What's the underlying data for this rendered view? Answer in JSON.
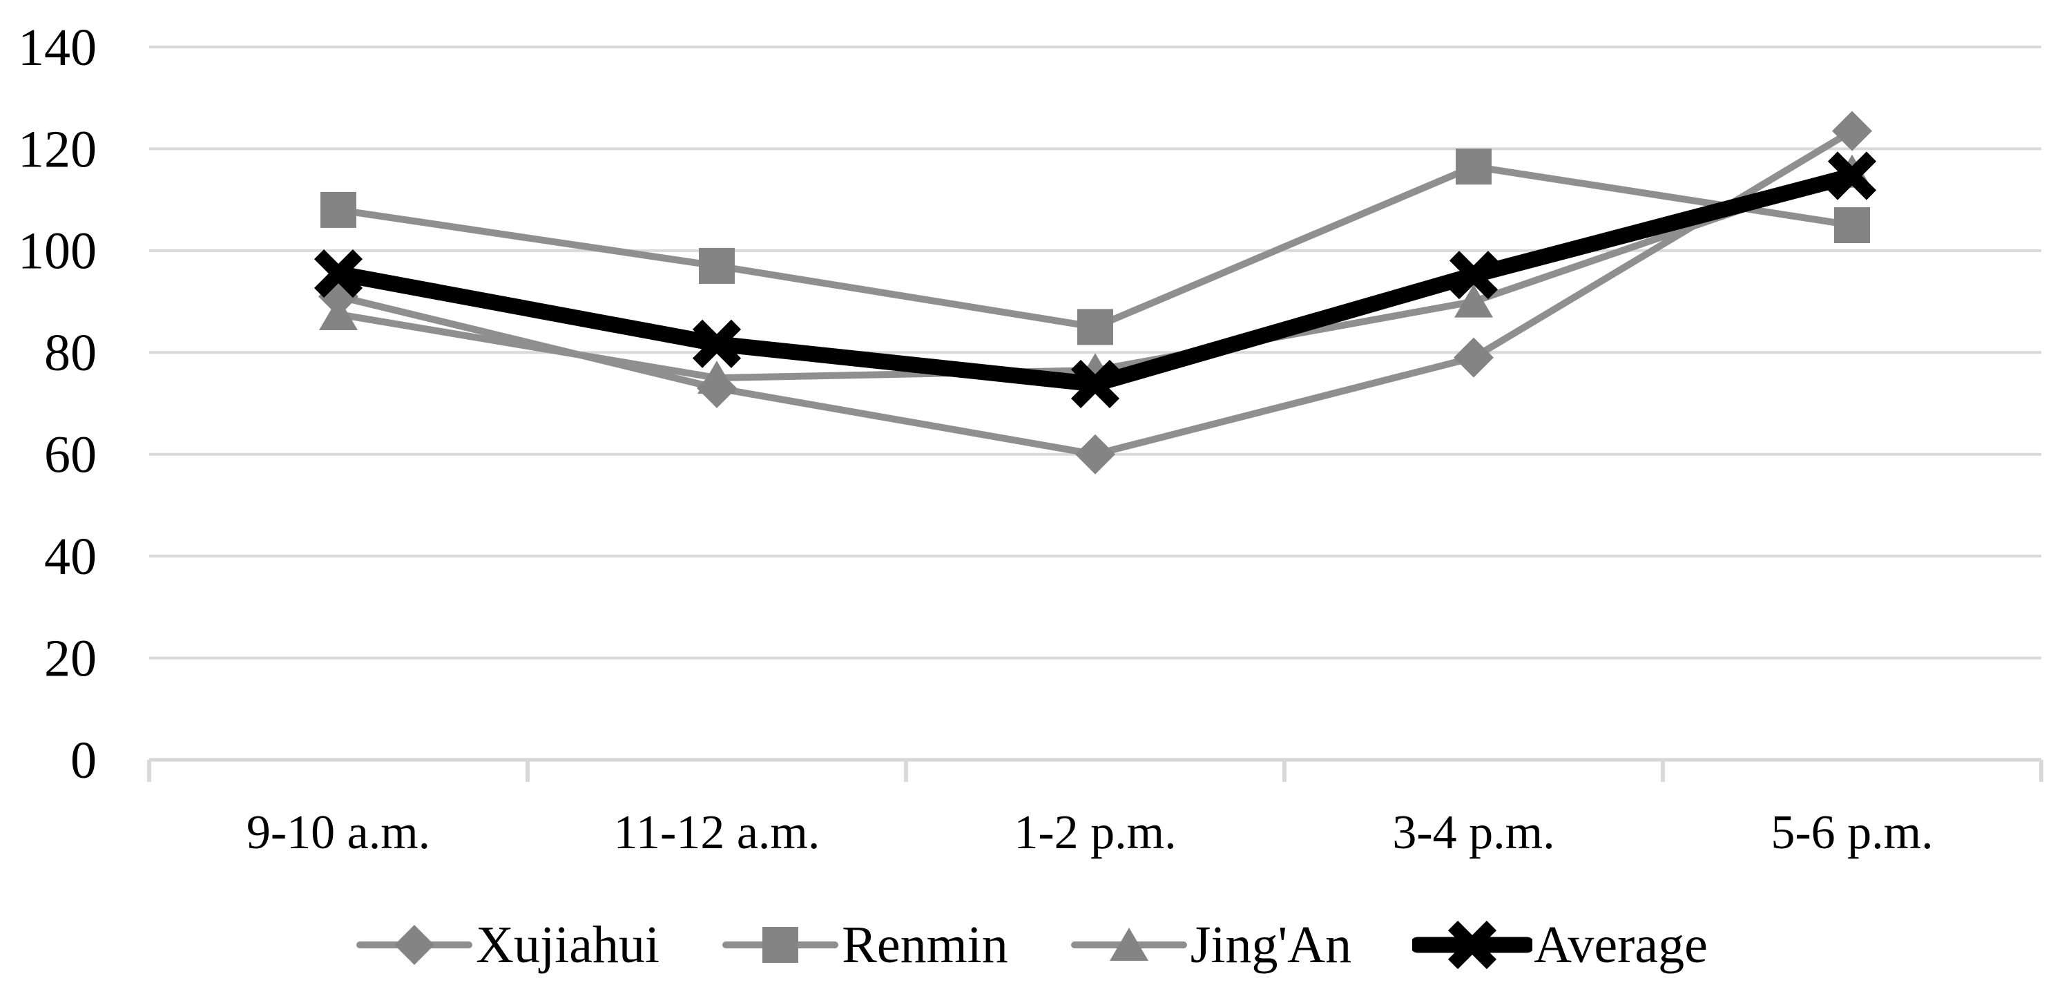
{
  "chart_data": {
    "type": "line",
    "title": "",
    "xlabel": "",
    "ylabel": "",
    "categories": [
      "9-10 a.m.",
      "11-12 a.m.",
      "1-2 p.m.",
      "3-4 p.m.",
      "5-6 p.m."
    ],
    "series": [
      {
        "name": "Xujiahui",
        "marker": "diamond",
        "line_color": "#8f8f8f",
        "marker_color": "#848484",
        "line_width": 10,
        "values": [
          91,
          73,
          60,
          79,
          123.5
        ]
      },
      {
        "name": "Renmin",
        "marker": "square",
        "line_color": "#8f8f8f",
        "marker_color": "#848484",
        "line_width": 10,
        "values": [
          108,
          97,
          85,
          116.5,
          105
        ]
      },
      {
        "name": "Jing'An",
        "marker": "triangle",
        "line_color": "#8f8f8f",
        "marker_color": "#848484",
        "line_width": 10,
        "values": [
          87.5,
          75,
          76.5,
          90,
          115.5
        ]
      },
      {
        "name": "Average",
        "marker": "x",
        "line_color": "#000000",
        "marker_color": "#000000",
        "line_width": 23,
        "values": [
          95.5,
          81.7,
          73.8,
          95.2,
          114.7
        ]
      }
    ],
    "y_axis": {
      "min": 0,
      "max": 140,
      "step": 20,
      "ticks": [
        0,
        20,
        40,
        60,
        80,
        100,
        120,
        140
      ]
    },
    "ylim": [
      0,
      140
    ],
    "grid": true,
    "legend_position": "bottom",
    "colors": {
      "background": "#ffffff",
      "gridline": "#d9d9d9",
      "axis_line": "#d6d6d6",
      "tick_mark": "#d9d9d9",
      "text": "#000000"
    }
  }
}
